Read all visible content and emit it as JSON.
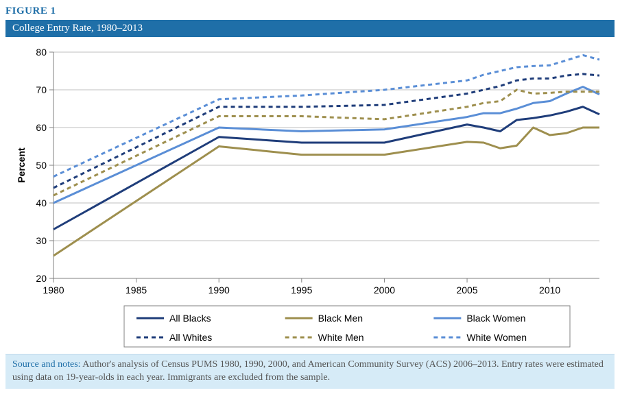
{
  "figure_label": "FIGURE 1",
  "title": "College Entry Rate, 1980–2013",
  "chart": {
    "type": "line",
    "background_color": "#ffffff",
    "grid_color": "#bfbfbf",
    "axis_color": "#808080",
    "yaxis": {
      "label": "Percent",
      "min": 20,
      "max": 80,
      "tick_step": 10,
      "label_fontsize": 14
    },
    "xaxis": {
      "ticks": [
        1980,
        1985,
        1990,
        1995,
        2000,
        2005,
        2010
      ],
      "label_fontsize": 14
    },
    "x_values": [
      1980,
      1990,
      1995,
      2000,
      2005,
      2006,
      2007,
      2008,
      2009,
      2010,
      2011,
      2012,
      2013
    ],
    "series": [
      {
        "name": "All Blacks",
        "color": "#1f3d7a",
        "dash": "solid",
        "width": 3,
        "values": [
          33,
          57.5,
          56,
          56,
          60.8,
          60,
          59,
          62,
          62.5,
          63.2,
          64.2,
          65.5,
          63.5
        ]
      },
      {
        "name": "Black Men",
        "color": "#9e8f4e",
        "dash": "solid",
        "width": 3,
        "values": [
          26,
          55,
          52.8,
          52.8,
          56.2,
          56,
          54.5,
          55.2,
          60,
          58,
          58.5,
          60,
          60
        ]
      },
      {
        "name": "Black Women",
        "color": "#5a8ed6",
        "dash": "solid",
        "width": 3,
        "values": [
          40,
          60,
          59,
          59.5,
          62.8,
          63.8,
          63.8,
          65,
          66.5,
          67,
          69,
          70.8,
          68.8
        ]
      },
      {
        "name": "All Whites",
        "color": "#1f3d7a",
        "dash": "6,5",
        "width": 3,
        "values": [
          44,
          65.5,
          65.5,
          66,
          69,
          70,
          71,
          72.5,
          73,
          73,
          73.8,
          74.2,
          73.8
        ]
      },
      {
        "name": "White Men",
        "color": "#9e8f4e",
        "dash": "6,5",
        "width": 3,
        "values": [
          42,
          63,
          63,
          62.2,
          65.5,
          66.5,
          67,
          70,
          69,
          69.2,
          69.5,
          69.5,
          69.5
        ]
      },
      {
        "name": "White Women",
        "color": "#5a8ed6",
        "dash": "6,5",
        "width": 3,
        "values": [
          47,
          67.5,
          68.5,
          70,
          72.5,
          74,
          75,
          76,
          76.3,
          76.5,
          77.8,
          79.2,
          78
        ]
      }
    ],
    "legend": {
      "border_color": "#808080",
      "label_fontsize": 14,
      "cols": 3
    }
  },
  "source": {
    "label": "Source and notes:",
    "text": " Author's analysis of Census PUMS 1980, 1990, 2000, and American Community Survey (ACS) 2006–2013. Entry rates were estimated using data on 19-year-olds in each year. Immigrants are excluded from the sample."
  }
}
